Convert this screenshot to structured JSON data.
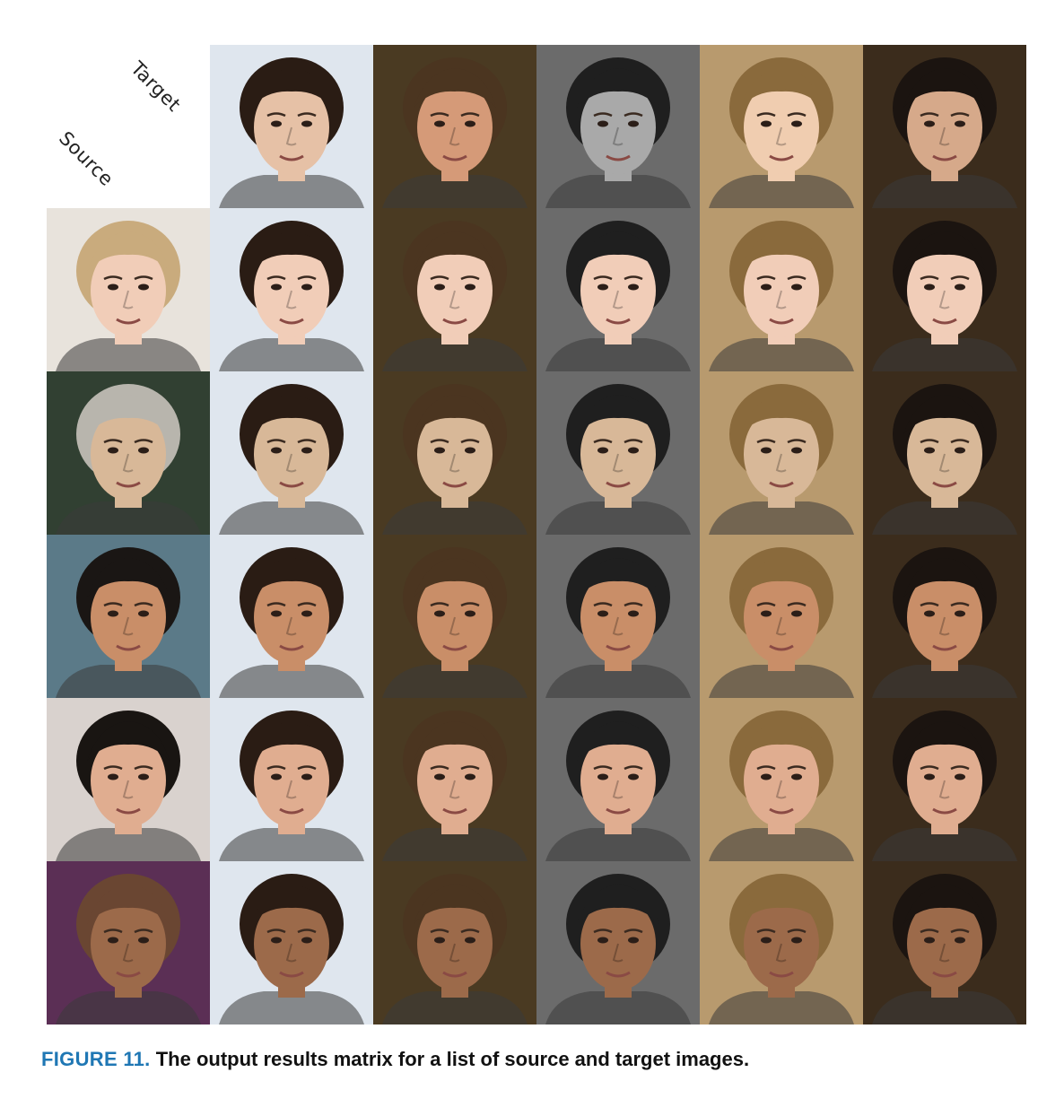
{
  "corner": {
    "target_label": "Target",
    "source_label": "Source"
  },
  "caption": {
    "figure_number": "FIGURE 11.",
    "text": "The output results matrix for a list of source and target images."
  },
  "colors": {
    "figure_label": "#1f77b4",
    "caption_text": "#111111"
  },
  "targets": [
    {
      "bg": "#dfe6ee",
      "skin": "#e6c1a6",
      "hair": "#2a1c14"
    },
    {
      "bg": "#4a3a22",
      "skin": "#d59a78",
      "hair": "#4b3520"
    },
    {
      "bg": "#6b6b6b",
      "skin": "#a9a9a9",
      "hair": "#1f1f1f"
    },
    {
      "bg": "#b89a6e",
      "skin": "#f0cdb0",
      "hair": "#8a6a3c"
    },
    {
      "bg": "#3b2c1c",
      "skin": "#d6a98a",
      "hair": "#1b1410"
    }
  ],
  "sources": [
    {
      "bg": "#e8e3dc",
      "skin": "#f1cdb8",
      "hair": "#c9ab7d"
    },
    {
      "bg": "#314032",
      "skin": "#d8b898",
      "hair": "#b8b5ad"
    },
    {
      "bg": "#5b7a88",
      "skin": "#c98e68",
      "hair": "#1a1614"
    },
    {
      "bg": "#d9d2ce",
      "skin": "#e0ad90",
      "hair": "#191512"
    },
    {
      "bg": "#5b2f55",
      "skin": "#9c6a4a",
      "hair": "#6a4632"
    }
  ]
}
